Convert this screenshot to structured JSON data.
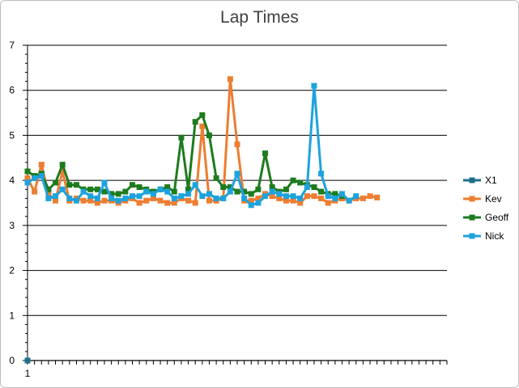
{
  "chart_data": {
    "type": "line",
    "title": "Lap Times",
    "xlabel": "",
    "ylabel": "",
    "ylim": [
      0,
      7
    ],
    "yticks": [
      0,
      1,
      2,
      3,
      4,
      5,
      6,
      7
    ],
    "x_tick_label": "1",
    "n_laps": 60,
    "grid": "horizontal",
    "legend_position": "right",
    "series": [
      {
        "name": "X1",
        "color": "#1f6f8b",
        "values": [
          0
        ]
      },
      {
        "name": "Kev",
        "color": "#ed7d31",
        "values": [
          4.05,
          3.75,
          4.35,
          3.7,
          3.55,
          4.2,
          3.55,
          3.6,
          3.55,
          3.55,
          3.5,
          3.55,
          3.55,
          3.5,
          3.55,
          3.6,
          3.5,
          3.55,
          3.6,
          3.55,
          3.5,
          3.5,
          3.6,
          3.55,
          3.5,
          5.2,
          3.55,
          3.55,
          3.6,
          6.25,
          4.8,
          3.55,
          3.55,
          3.6,
          3.7,
          3.65,
          3.6,
          3.55,
          3.55,
          3.5,
          3.65,
          3.65,
          3.6,
          3.5,
          3.55,
          3.6,
          3.55,
          3.6,
          3.6,
          3.65,
          3.62
        ]
      },
      {
        "name": "Geoff",
        "color": "#1e7b1e",
        "values": [
          4.2,
          4.1,
          4.15,
          3.8,
          3.95,
          4.35,
          3.9,
          3.9,
          3.8,
          3.8,
          3.8,
          3.75,
          3.7,
          3.7,
          3.75,
          3.9,
          3.85,
          3.8,
          3.75,
          3.8,
          3.85,
          3.75,
          4.95,
          3.8,
          5.3,
          5.45,
          5.0,
          4.05,
          3.85,
          3.85,
          3.75,
          3.75,
          3.7,
          3.8,
          4.6,
          3.85,
          3.75,
          3.8,
          4.0,
          3.95,
          3.9,
          3.85,
          3.75,
          3.7,
          3.7,
          3.65
        ]
      },
      {
        "name": "Nick",
        "color": "#1ca3dd",
        "values": [
          3.95,
          4.05,
          4.1,
          3.6,
          3.65,
          3.8,
          3.6,
          3.55,
          3.75,
          3.65,
          3.6,
          3.95,
          3.6,
          3.55,
          3.6,
          3.65,
          3.65,
          3.75,
          3.7,
          3.8,
          3.75,
          3.6,
          3.65,
          3.7,
          3.9,
          3.65,
          3.7,
          3.6,
          3.6,
          3.75,
          4.15,
          3.6,
          3.45,
          3.5,
          3.65,
          3.75,
          3.7,
          3.65,
          3.65,
          3.6,
          3.85,
          6.1,
          4.15,
          3.65,
          3.6,
          3.7,
          3.55,
          3.65
        ]
      }
    ]
  }
}
